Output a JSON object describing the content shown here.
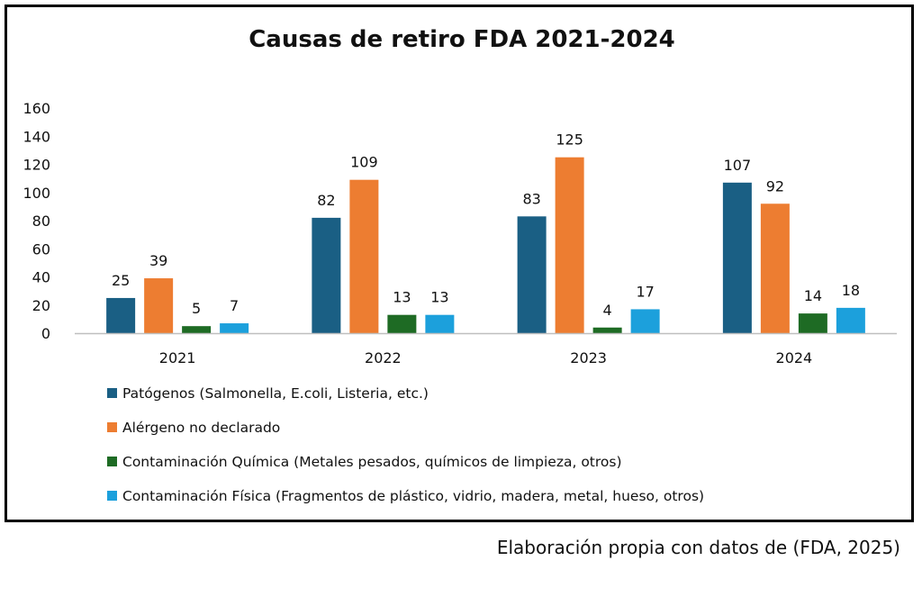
{
  "chart_data": {
    "type": "bar",
    "title": "Causas de retiro FDA 2021-2024",
    "categories": [
      "2021",
      "2022",
      "2023",
      "2024"
    ],
    "series": [
      {
        "name": "Patógenos (Salmonella, E.coli, Listeria, etc.)",
        "color": "#1A5F84",
        "values": [
          25,
          82,
          83,
          107
        ]
      },
      {
        "name": "Alérgeno no declarado",
        "color": "#ED7D31",
        "values": [
          39,
          109,
          125,
          92
        ]
      },
      {
        "name": "Contaminación Química (Metales pesados, químicos de limpieza, otros)",
        "color": "#1E6B24",
        "values": [
          5,
          13,
          4,
          14
        ]
      },
      {
        "name": "Contaminación Física (Fragmentos de plástico, vidrio, madera, metal, hueso, otros)",
        "color": "#1CA0DC",
        "values": [
          7,
          13,
          17,
          18
        ]
      }
    ],
    "yticks": [
      0,
      20,
      40,
      60,
      80,
      100,
      120,
      140,
      160
    ],
    "ylim": [
      0,
      160
    ],
    "xlabel": "",
    "ylabel": "",
    "grid": false,
    "legend_position": "bottom",
    "data_labels": true
  },
  "source_note": "Elaboración propia con datos de (FDA, 2025)"
}
